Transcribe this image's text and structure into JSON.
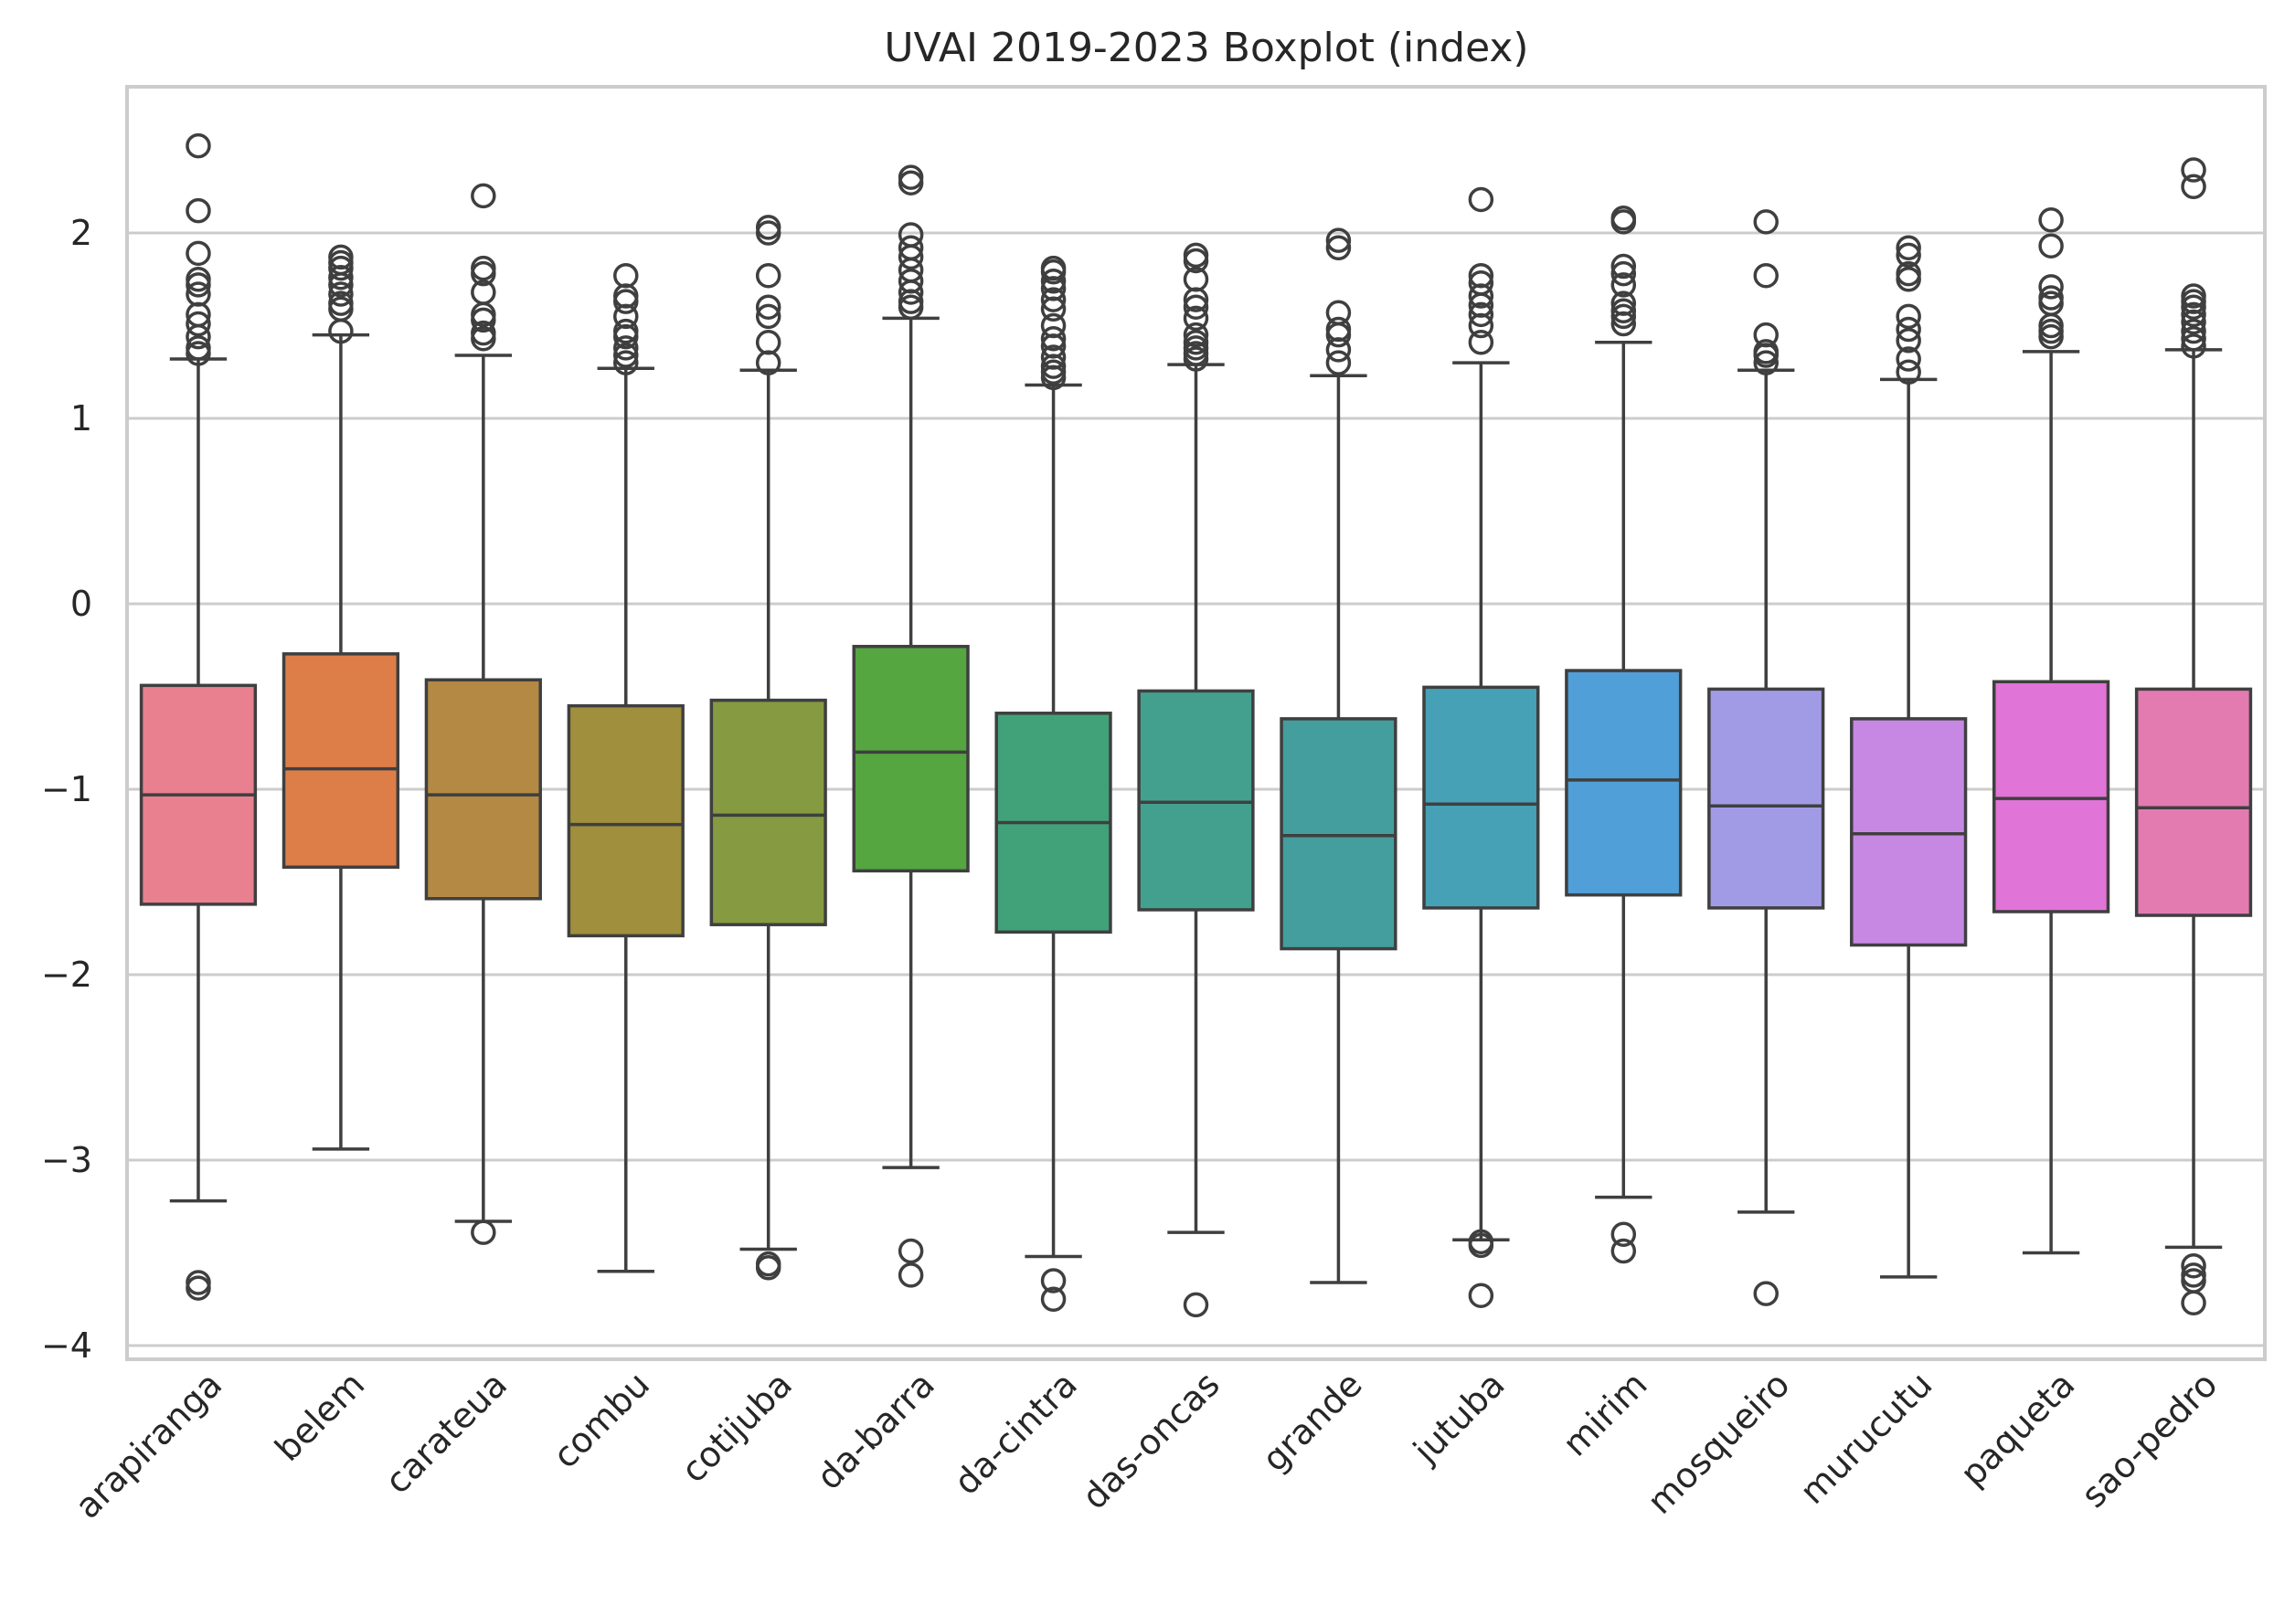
{
  "chart_data": {
    "type": "boxplot",
    "title": "UVAI 2019-2023 Boxplot (index)",
    "xlabel": "",
    "ylabel": "",
    "ylim": [
      -4.08,
      2.8
    ],
    "yticks": [
      2,
      1,
      0,
      -1,
      -2,
      -3,
      -4
    ],
    "ytick_labels": [
      "2",
      "1",
      "0",
      "−1",
      "−2",
      "−3",
      "−4"
    ],
    "grid": true,
    "categories": [
      "arapiranga",
      "belem",
      "carateua",
      "combu",
      "cotijuba",
      "da-barra",
      "da-cintra",
      "das-oncas",
      "grande",
      "jutuba",
      "mirim",
      "mosqueiro",
      "murucutu",
      "paqueta",
      "sao-pedro"
    ],
    "colors": [
      "#e8808f",
      "#dd7e49",
      "#b48943",
      "#a08f3c",
      "#859a41",
      "#55a541",
      "#41a27a",
      "#43a08e",
      "#449e9d",
      "#46a0b6",
      "#509fd8",
      "#a19be6",
      "#c788e4",
      "#e174d7",
      "#e37bb1"
    ],
    "boxes": [
      {
        "q1": -1.62,
        "median": -1.03,
        "q3": -0.44,
        "whisker_low": -3.22,
        "whisker_high": 1.32,
        "fliers": [
          2.47,
          2.12,
          1.89,
          1.75,
          1.72,
          1.67,
          1.56,
          1.51,
          1.44,
          1.38,
          1.35,
          -3.66,
          -3.69
        ]
      },
      {
        "q1": -1.42,
        "median": -0.89,
        "q3": -0.27,
        "whisker_low": -2.94,
        "whisker_high": 1.45,
        "fliers": [
          1.87,
          1.84,
          1.81,
          1.76,
          1.72,
          1.67,
          1.62,
          1.59,
          1.47
        ]
      },
      {
        "q1": -1.59,
        "median": -1.03,
        "q3": -0.41,
        "whisker_low": -3.33,
        "whisker_high": 1.34,
        "fliers": [
          2.2,
          1.81,
          1.78,
          1.68,
          1.56,
          1.53,
          1.46,
          1.43,
          -3.39
        ]
      },
      {
        "q1": -1.79,
        "median": -1.19,
        "q3": -0.55,
        "whisker_low": -3.6,
        "whisker_high": 1.27,
        "fliers": [
          1.77,
          1.66,
          1.63,
          1.55,
          1.47,
          1.44,
          1.38,
          1.34,
          1.3
        ]
      },
      {
        "q1": -1.73,
        "median": -1.14,
        "q3": -0.52,
        "whisker_low": -3.48,
        "whisker_high": 1.26,
        "fliers": [
          2.03,
          2.0,
          1.77,
          1.6,
          1.55,
          1.41,
          1.3,
          -3.56,
          -3.58
        ]
      },
      {
        "q1": -1.44,
        "median": -0.8,
        "q3": -0.23,
        "whisker_low": -3.04,
        "whisker_high": 1.54,
        "fliers": [
          2.3,
          2.27,
          1.99,
          1.92,
          1.87,
          1.8,
          1.74,
          1.68,
          1.63,
          1.6,
          -3.49,
          -3.62
        ]
      },
      {
        "q1": -1.77,
        "median": -1.18,
        "q3": -0.59,
        "whisker_low": -3.52,
        "whisker_high": 1.18,
        "fliers": [
          1.81,
          1.79,
          1.74,
          1.7,
          1.64,
          1.59,
          1.5,
          1.43,
          1.39,
          1.33,
          1.28,
          1.25,
          1.22,
          -3.65,
          -3.75
        ]
      },
      {
        "q1": -1.65,
        "median": -1.07,
        "q3": -0.47,
        "whisker_low": -3.39,
        "whisker_high": 1.29,
        "fliers": [
          1.88,
          1.85,
          1.75,
          1.64,
          1.6,
          1.54,
          1.45,
          1.41,
          1.38,
          1.35,
          1.32,
          -3.78
        ]
      },
      {
        "q1": -1.86,
        "median": -1.25,
        "q3": -0.62,
        "whisker_low": -3.66,
        "whisker_high": 1.23,
        "fliers": [
          1.96,
          1.92,
          1.57,
          1.48,
          1.45,
          1.37,
          1.3
        ]
      },
      {
        "q1": -1.64,
        "median": -1.08,
        "q3": -0.45,
        "whisker_low": -3.43,
        "whisker_high": 1.3,
        "fliers": [
          2.18,
          1.77,
          1.73,
          1.66,
          1.61,
          1.56,
          1.5,
          1.41,
          -3.44,
          -3.46,
          -3.73
        ]
      },
      {
        "q1": -1.57,
        "median": -0.95,
        "q3": -0.36,
        "whisker_low": -3.2,
        "whisker_high": 1.41,
        "fliers": [
          2.08,
          2.06,
          1.82,
          1.78,
          1.72,
          1.62,
          1.58,
          1.55,
          1.51,
          -3.4,
          -3.49
        ]
      },
      {
        "q1": -1.64,
        "median": -1.09,
        "q3": -0.46,
        "whisker_low": -3.28,
        "whisker_high": 1.26,
        "fliers": [
          2.06,
          1.77,
          1.45,
          1.36,
          1.34,
          1.3,
          -3.72
        ]
      },
      {
        "q1": -1.84,
        "median": -1.24,
        "q3": -0.62,
        "whisker_low": -3.63,
        "whisker_high": 1.21,
        "fliers": [
          1.92,
          1.88,
          1.78,
          1.75,
          1.55,
          1.48,
          1.42,
          1.32,
          1.25
        ]
      },
      {
        "q1": -1.66,
        "median": -1.05,
        "q3": -0.42,
        "whisker_low": -3.5,
        "whisker_high": 1.36,
        "fliers": [
          2.07,
          1.93,
          1.71,
          1.65,
          1.62,
          1.5,
          1.47,
          1.44
        ]
      },
      {
        "q1": -1.68,
        "median": -1.1,
        "q3": -0.46,
        "whisker_low": -3.47,
        "whisker_high": 1.37,
        "fliers": [
          2.34,
          2.25,
          1.66,
          1.63,
          1.6,
          1.56,
          1.52,
          1.47,
          1.43,
          1.39,
          -3.57,
          -3.62,
          -3.65,
          -3.77
        ]
      }
    ]
  }
}
